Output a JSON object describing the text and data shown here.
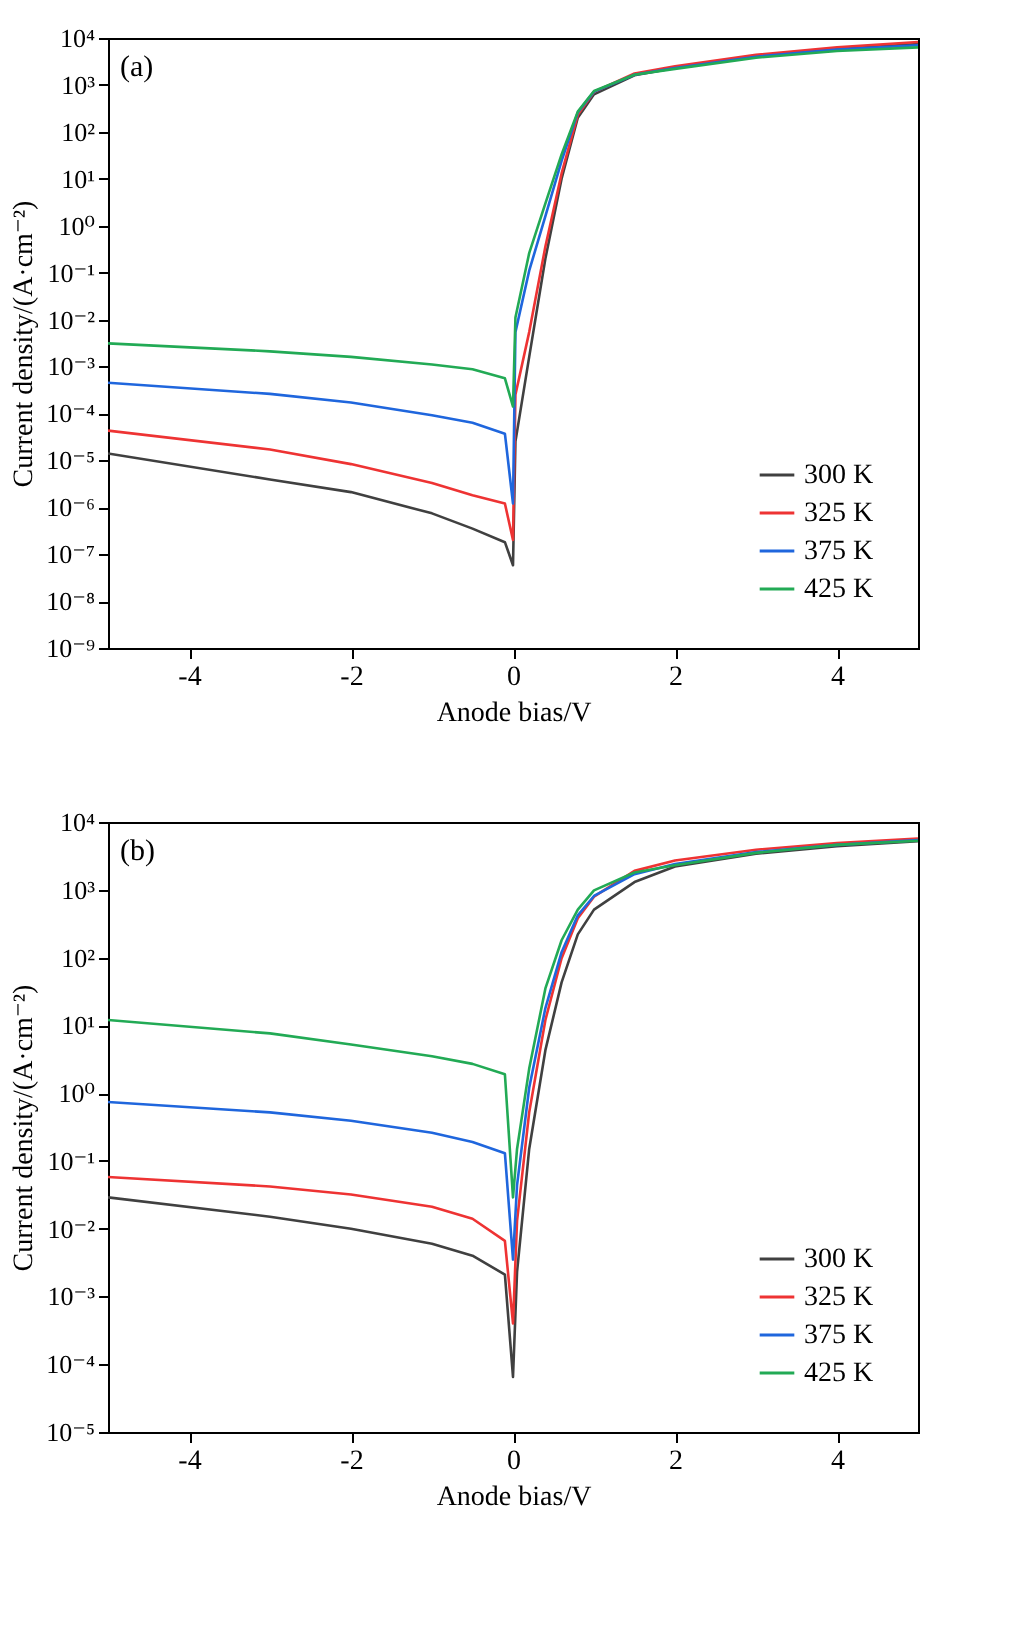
{
  "chart_data": [
    {
      "type": "line",
      "annotations": [
        "(a)"
      ],
      "xlabel": "Anode bias/V",
      "ylabel": "Current density/(A·cm⁻²)",
      "log": "y",
      "grid": false,
      "legend": "bottom right",
      "x": [
        -5,
        -3,
        -2,
        -1,
        -0.5,
        -0.1,
        0,
        0.03,
        0.2,
        0.4,
        0.6,
        0.8,
        1,
        1.5,
        2,
        3,
        4,
        5
      ],
      "xlim": [
        -5,
        5
      ],
      "xticks": [
        -4,
        -2,
        0,
        2,
        4
      ],
      "ylim": [
        1e-09,
        10000
      ],
      "yticks": [
        {
          "value": 1e-09,
          "label": "10⁻⁹"
        },
        {
          "value": 1e-08,
          "label": "10⁻⁸"
        },
        {
          "value": 1e-07,
          "label": "10⁻⁷"
        },
        {
          "value": 1e-06,
          "label": "10⁻⁶"
        },
        {
          "value": 1e-05,
          "label": "10⁻⁵"
        },
        {
          "value": 0.0001,
          "label": "10⁻⁴"
        },
        {
          "value": 0.001,
          "label": "10⁻³"
        },
        {
          "value": 0.01,
          "label": "10⁻²"
        },
        {
          "value": 0.1,
          "label": "10⁻¹"
        },
        {
          "value": 1,
          "label": "10⁰"
        },
        {
          "value": 10,
          "label": "10¹"
        },
        {
          "value": 100,
          "label": "10²"
        },
        {
          "value": 1000,
          "label": "10³"
        },
        {
          "value": 10000,
          "label": "10⁴"
        }
      ],
      "series": [
        {
          "name": "300 K",
          "color": "#404040",
          "values": [
            1.4e-05,
            3.9e-06,
            2.1e-06,
            7.4e-07,
            3.5e-07,
            1.8e-07,
            5.8e-08,
            2.5e-05,
            0.0016,
            0.2,
            10,
            200,
            630,
            1600,
            2300,
            4000,
            5800,
            7400
          ]
        },
        {
          "name": "325 K",
          "color": "#ee3333",
          "values": [
            4.3e-05,
            1.7e-05,
            8.3e-06,
            3.3e-06,
            1.8e-06,
            1.2e-06,
            2e-07,
            0.00025,
            0.0054,
            0.36,
            13,
            230,
            710,
            1750,
            2500,
            4400,
            6300,
            8200
          ]
        },
        {
          "name": "375 K",
          "color": "#1f66dd",
          "values": [
            0.00045,
            0.00026,
            0.00017,
            9.1e-05,
            6.3e-05,
            3.7e-05,
            1.2e-06,
            0.0054,
            0.11,
            1.6,
            24,
            260,
            720,
            1650,
            2300,
            4000,
            5700,
            7000
          ]
        },
        {
          "name": "425 K",
          "color": "#22aa55",
          "values": [
            0.0031,
            0.0021,
            0.0016,
            0.0011,
            0.00087,
            0.00056,
            0.00014,
            0.011,
            0.26,
            3.0,
            33,
            270,
            740,
            1650,
            2200,
            3800,
            5300,
            6300
          ]
        }
      ]
    },
    {
      "type": "line",
      "annotations": [
        "(b)"
      ],
      "xlabel": "Anode bias/V",
      "ylabel": "Current density/(A·cm⁻²)",
      "log": "y",
      "grid": false,
      "legend": "bottom right",
      "x": [
        -5,
        -3,
        -2,
        -1,
        -0.5,
        -0.1,
        0,
        0.05,
        0.2,
        0.4,
        0.6,
        0.8,
        1,
        1.5,
        2,
        3,
        4,
        5
      ],
      "xlim": [
        -5,
        5
      ],
      "xticks": [
        -4,
        -2,
        0,
        2,
        4
      ],
      "ylim": [
        1e-05,
        10000
      ],
      "yticks": [
        {
          "value": 1e-05,
          "label": "10⁻⁵"
        },
        {
          "value": 0.0001,
          "label": "10⁻⁴"
        },
        {
          "value": 0.001,
          "label": "10⁻³"
        },
        {
          "value": 0.01,
          "label": "10⁻²"
        },
        {
          "value": 0.1,
          "label": "10⁻¹"
        },
        {
          "value": 1,
          "label": "10⁰"
        },
        {
          "value": 10,
          "label": "10¹"
        },
        {
          "value": 100,
          "label": "10²"
        },
        {
          "value": 1000,
          "label": "10³"
        },
        {
          "value": 10000,
          "label": "10⁴"
        }
      ],
      "series": [
        {
          "name": "300 K",
          "color": "#404040",
          "values": [
            0.029,
            0.015,
            0.01,
            0.006,
            0.004,
            0.0021,
            6.5e-05,
            0.0023,
            0.15,
            4.3,
            43,
            220,
            510,
            1300,
            2200,
            3400,
            4400,
            5200
          ]
        },
        {
          "name": "325 K",
          "color": "#ee3333",
          "values": [
            0.058,
            0.042,
            0.032,
            0.021,
            0.014,
            0.0066,
            0.0004,
            0.013,
            0.52,
            12,
            98,
            380,
            790,
            1900,
            2700,
            3900,
            4900,
            5700
          ]
        },
        {
          "name": "375 K",
          "color": "#1f66dd",
          "values": [
            0.74,
            0.52,
            0.39,
            0.26,
            0.19,
            0.13,
            0.0035,
            0.044,
            1.2,
            18,
            120,
            420,
            810,
            1700,
            2400,
            3600,
            4600,
            5400
          ]
        },
        {
          "name": "425 K",
          "color": "#22aa55",
          "values": [
            12,
            7.6,
            5.2,
            3.5,
            2.7,
            1.9,
            0.029,
            0.15,
            2.3,
            35,
            180,
            510,
            980,
            1800,
            2300,
            3500,
            4600,
            5300
          ]
        }
      ]
    }
  ]
}
